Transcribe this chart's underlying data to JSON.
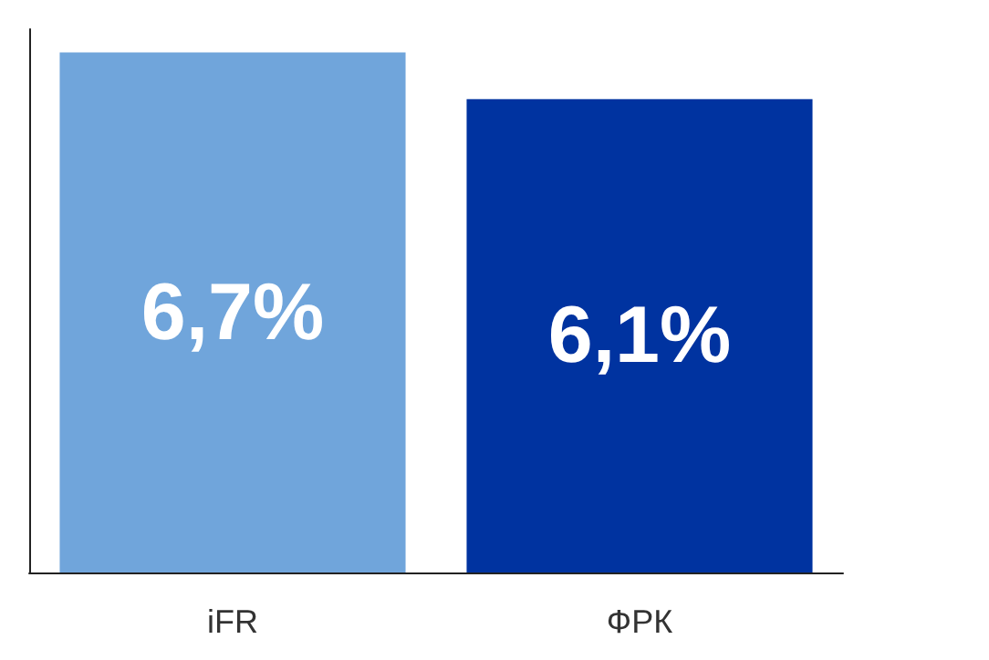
{
  "chart_data": {
    "type": "bar",
    "categories": [
      "iFR",
      "ФРК"
    ],
    "values": [
      6.7,
      6.1
    ],
    "colors": [
      "#70a5db",
      "#0033a0"
    ],
    "value_labels": [
      "6,7%",
      "6,1%"
    ],
    "grid": false
  }
}
